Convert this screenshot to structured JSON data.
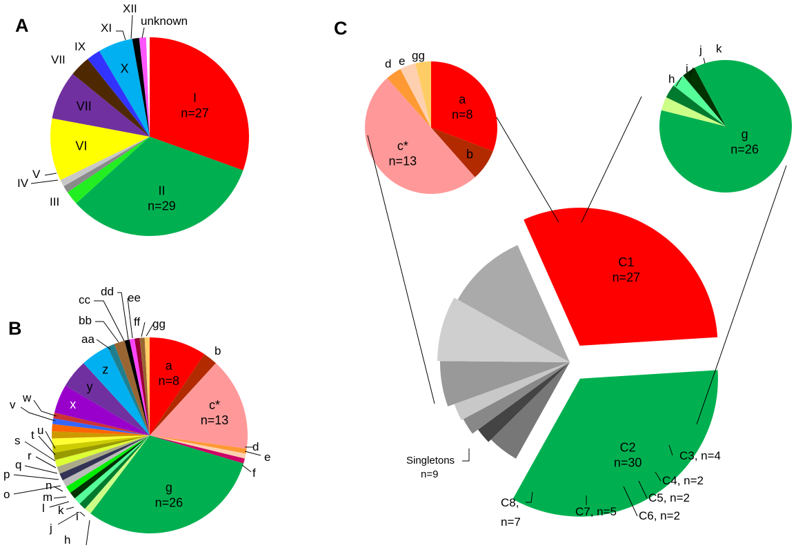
{
  "panels": {
    "a": "A",
    "b": "B",
    "c": "C"
  },
  "chart_data": [
    {
      "panel": "A",
      "type": "pie",
      "slices": [
        {
          "label": "I",
          "value": 27,
          "text": "I",
          "sub": "n=27",
          "color": "#ff0000"
        },
        {
          "label": "II",
          "value": 29,
          "text": "II",
          "sub": "n=29",
          "color": "#00b050"
        },
        {
          "label": "III",
          "value": 2,
          "color": "#22ee22"
        },
        {
          "label": "IV",
          "value": 1,
          "color": "#8a8a8a"
        },
        {
          "label": "V",
          "value": 1,
          "color": "#c8c8c8"
        },
        {
          "label": "VI",
          "value": 9,
          "text": "VI",
          "color": "#ffff00"
        },
        {
          "label": "VII",
          "value": 7,
          "text": "VII",
          "color": "#7030a0"
        },
        {
          "label": "VII",
          "value": 3,
          "color": "#4d2800"
        },
        {
          "label": "IX",
          "value": 2,
          "color": "#3333ff"
        },
        {
          "label": "X",
          "value": 5,
          "text": "X",
          "color": "#00b0f0"
        },
        {
          "label": "XI",
          "value": 1,
          "color": "#000000"
        },
        {
          "label": "XII",
          "value": 1,
          "color": "#ff55ff"
        },
        {
          "label": "unknown",
          "value": 0.5,
          "color": "#ffffff"
        }
      ]
    },
    {
      "panel": "B",
      "type": "pie",
      "slices": [
        {
          "label": "a",
          "value": 8,
          "text": "a",
          "sub": "n=8",
          "color": "#ff0000"
        },
        {
          "label": "b",
          "value": 2,
          "color": "#b22a00"
        },
        {
          "label": "c*",
          "value": 13,
          "text": "c*",
          "sub": "n=13",
          "color": "#ff9999"
        },
        {
          "label": "d",
          "value": 0.7,
          "color": "#ff9933"
        },
        {
          "label": "e",
          "value": 0.7,
          "color": "#ffd0b0"
        },
        {
          "label": "f",
          "value": 0.7,
          "color": "#cc0066"
        },
        {
          "label": "g",
          "value": 26,
          "text": "g",
          "sub": "n=26",
          "color": "#00b050"
        },
        {
          "label": "h",
          "value": 1,
          "color": "#ccff88"
        },
        {
          "label": "i",
          "value": 1,
          "color": "#007a2e"
        },
        {
          "label": "j",
          "value": 1,
          "color": "#55ff99"
        },
        {
          "label": "k",
          "value": 1,
          "color": "#003300"
        },
        {
          "label": "l",
          "value": 1,
          "color": "#00ee00"
        },
        {
          "label": "m",
          "value": 1,
          "color": "#bbbbbb"
        },
        {
          "label": "n",
          "value": 1,
          "color": "#333355"
        },
        {
          "label": "o",
          "value": 1,
          "color": "#aaaa88"
        },
        {
          "label": "p",
          "value": 1,
          "color": "#ddff33"
        },
        {
          "label": "q",
          "value": 1,
          "color": "#999900"
        },
        {
          "label": "r",
          "value": 1,
          "color": "#cccc00"
        },
        {
          "label": "s",
          "value": 1,
          "color": "#ffff33"
        },
        {
          "label": "t",
          "value": 1,
          "color": "#cc9900"
        },
        {
          "label": "u",
          "value": 1,
          "color": "#ff6600"
        },
        {
          "label": "v",
          "value": 0.8,
          "color": "#3366ff"
        },
        {
          "label": "w",
          "value": 0.8,
          "color": "#cc3333"
        },
        {
          "label": "x",
          "value": 4,
          "text": "x",
          "color": "#9900cc"
        },
        {
          "label": "y",
          "value": 4,
          "text": "y",
          "color": "#7030a0"
        },
        {
          "label": "z",
          "value": 4,
          "text": "z",
          "color": "#00b0f0"
        },
        {
          "label": "aa",
          "value": 1,
          "color": "#1f7f8f"
        },
        {
          "label": "bb",
          "value": 1.5,
          "color": "#996633"
        },
        {
          "label": "cc",
          "value": 0.7,
          "color": "#000000"
        },
        {
          "label": "dd",
          "value": 0.7,
          "color": "#ff44ff"
        },
        {
          "label": "ee",
          "value": 0.7,
          "color": "#990033"
        },
        {
          "label": "ff",
          "value": 0.7,
          "color": "#996633"
        },
        {
          "label": "gg",
          "value": 0.7,
          "color": "#ffcc66"
        }
      ]
    },
    {
      "panel": "C",
      "type": "pie",
      "role": "exploded clusters",
      "slices": [
        {
          "label": "C1",
          "value": 27,
          "text": "C1",
          "sub": "n=27",
          "color": "#ff0000"
        },
        {
          "label": "C2",
          "value": 30,
          "text": "C2",
          "sub": "n=30",
          "color": "#00b050"
        },
        {
          "label": "C3, n=4",
          "value": 4,
          "color": "#777777"
        },
        {
          "label": "C4, n=2",
          "value": 2,
          "color": "#444444"
        },
        {
          "label": "C5, n=2",
          "value": 2,
          "color": "#888888"
        },
        {
          "label": "C6, n=2",
          "value": 2,
          "color": "#c8c8c8"
        },
        {
          "label": "C7, n=5",
          "value": 5,
          "color": "#999999"
        },
        {
          "label": "C8, n=7",
          "value": 7,
          "color": "#cfcfcf"
        },
        {
          "label": "Singletons n=9",
          "value": 9,
          "color": "#aaaaaa"
        }
      ]
    },
    {
      "panel": "C",
      "type": "pie",
      "role": "C1 breakdown",
      "slices": [
        {
          "label": "a",
          "value": 8,
          "text": "a",
          "sub": "n=8",
          "color": "#ff0000"
        },
        {
          "label": "b",
          "value": 2,
          "text": "b",
          "color": "#b22a00"
        },
        {
          "label": "c*",
          "value": 13,
          "text": "c*",
          "sub": "n=13",
          "color": "#ff9999"
        },
        {
          "label": "d",
          "value": 1,
          "color": "#ff9933"
        },
        {
          "label": "e",
          "value": 1,
          "color": "#ffd0b0"
        },
        {
          "label": "gg",
          "value": 1,
          "color": "#ffcc66"
        }
      ]
    },
    {
      "panel": "C",
      "type": "pie",
      "role": "C2 breakdown",
      "slices": [
        {
          "label": "g",
          "value": 26,
          "text": "g",
          "sub": "n=26",
          "color": "#00b050"
        },
        {
          "label": "h",
          "value": 1,
          "color": "#ccff88"
        },
        {
          "label": "i",
          "value": 1,
          "color": "#007a2e"
        },
        {
          "label": "j",
          "value": 1,
          "color": "#55ff99"
        },
        {
          "label": "k",
          "value": 1,
          "color": "#003300"
        }
      ]
    }
  ]
}
